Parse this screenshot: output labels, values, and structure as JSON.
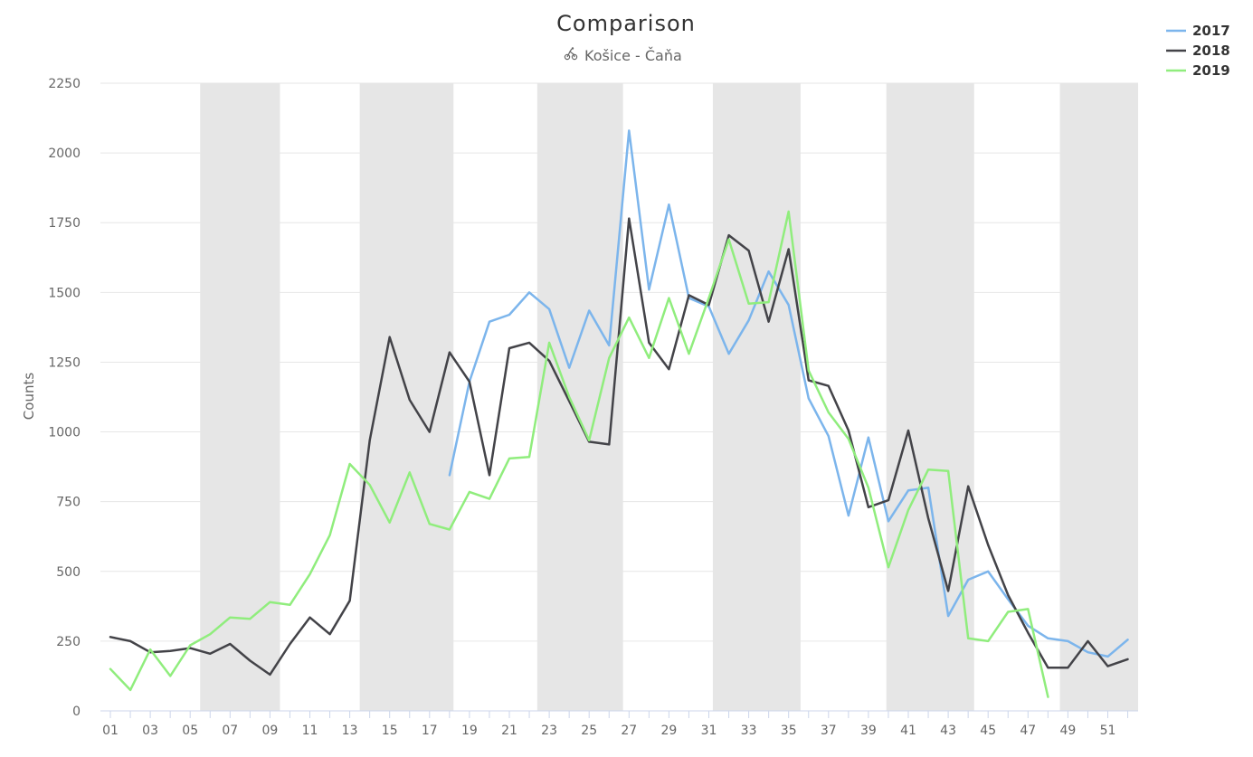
{
  "chart_data": {
    "type": "line",
    "title": "Comparison",
    "subtitle": "Košice - Čaňa",
    "subtitle_icon": "bicycle-icon",
    "ylabel": "Counts",
    "xlabel": "",
    "ylim": [
      0,
      2250
    ],
    "yticks": [
      0,
      250,
      500,
      750,
      1000,
      1250,
      1500,
      1750,
      2000,
      2250
    ],
    "x": [
      "01",
      "02",
      "03",
      "04",
      "05",
      "06",
      "07",
      "08",
      "09",
      "10",
      "11",
      "12",
      "13",
      "14",
      "15",
      "16",
      "17",
      "18",
      "19",
      "20",
      "21",
      "22",
      "23",
      "24",
      "25",
      "26",
      "27",
      "28",
      "29",
      "30",
      "31",
      "32",
      "33",
      "34",
      "35",
      "36",
      "37",
      "38",
      "39",
      "40",
      "41",
      "42",
      "43",
      "44",
      "45",
      "46",
      "47",
      "48",
      "49",
      "50",
      "51",
      "52"
    ],
    "xtick_labels": [
      "01",
      "03",
      "05",
      "07",
      "09",
      "11",
      "13",
      "15",
      "17",
      "19",
      "21",
      "23",
      "25",
      "27",
      "29",
      "31",
      "33",
      "35",
      "37",
      "39",
      "41",
      "43",
      "45",
      "47",
      "49",
      "51"
    ],
    "band_ranges": [
      [
        5.5,
        9.5
      ],
      [
        13.5,
        18.2
      ],
      [
        22.4,
        26.7
      ],
      [
        31.2,
        35.6
      ],
      [
        39.9,
        44.3
      ],
      [
        48.6,
        52.7
      ]
    ],
    "band_color": "#e6e6e6",
    "grid": true,
    "legend_position": "top-right",
    "series": [
      {
        "name": "2017",
        "color": "#7cb5ec",
        "values": [
          null,
          null,
          null,
          null,
          null,
          null,
          null,
          null,
          null,
          null,
          null,
          null,
          null,
          null,
          null,
          null,
          null,
          845,
          1180,
          1395,
          1420,
          1500,
          1440,
          1230,
          1435,
          1310,
          2080,
          1510,
          1815,
          1480,
          1450,
          1280,
          1400,
          1575,
          1455,
          1120,
          985,
          700,
          980,
          680,
          790,
          800,
          340,
          470,
          500,
          400,
          305,
          260,
          250,
          210,
          195,
          255
        ]
      },
      {
        "name": "2018",
        "color": "#434348",
        "values": [
          265,
          250,
          210,
          215,
          225,
          205,
          240,
          180,
          130,
          240,
          335,
          275,
          395,
          970,
          1340,
          1115,
          1000,
          1285,
          1180,
          845,
          1300,
          1320,
          1255,
          1110,
          965,
          955,
          1765,
          1320,
          1225,
          1490,
          1455,
          1705,
          1650,
          1395,
          1655,
          1185,
          1165,
          1005,
          730,
          755,
          1005,
          690,
          430,
          805,
          595,
          415,
          280,
          155,
          155,
          250,
          160,
          185
        ]
      },
      {
        "name": "2019",
        "color": "#90ed7d",
        "values": [
          150,
          75,
          220,
          125,
          235,
          275,
          335,
          330,
          390,
          380,
          490,
          630,
          885,
          810,
          675,
          855,
          670,
          650,
          785,
          760,
          905,
          910,
          1320,
          1125,
          970,
          1265,
          1410,
          1265,
          1480,
          1280,
          1480,
          1690,
          1460,
          1465,
          1790,
          1220,
          1070,
          975,
          800,
          515,
          720,
          865,
          860,
          260,
          250,
          355,
          365,
          50,
          null,
          null,
          null,
          null
        ]
      }
    ]
  }
}
